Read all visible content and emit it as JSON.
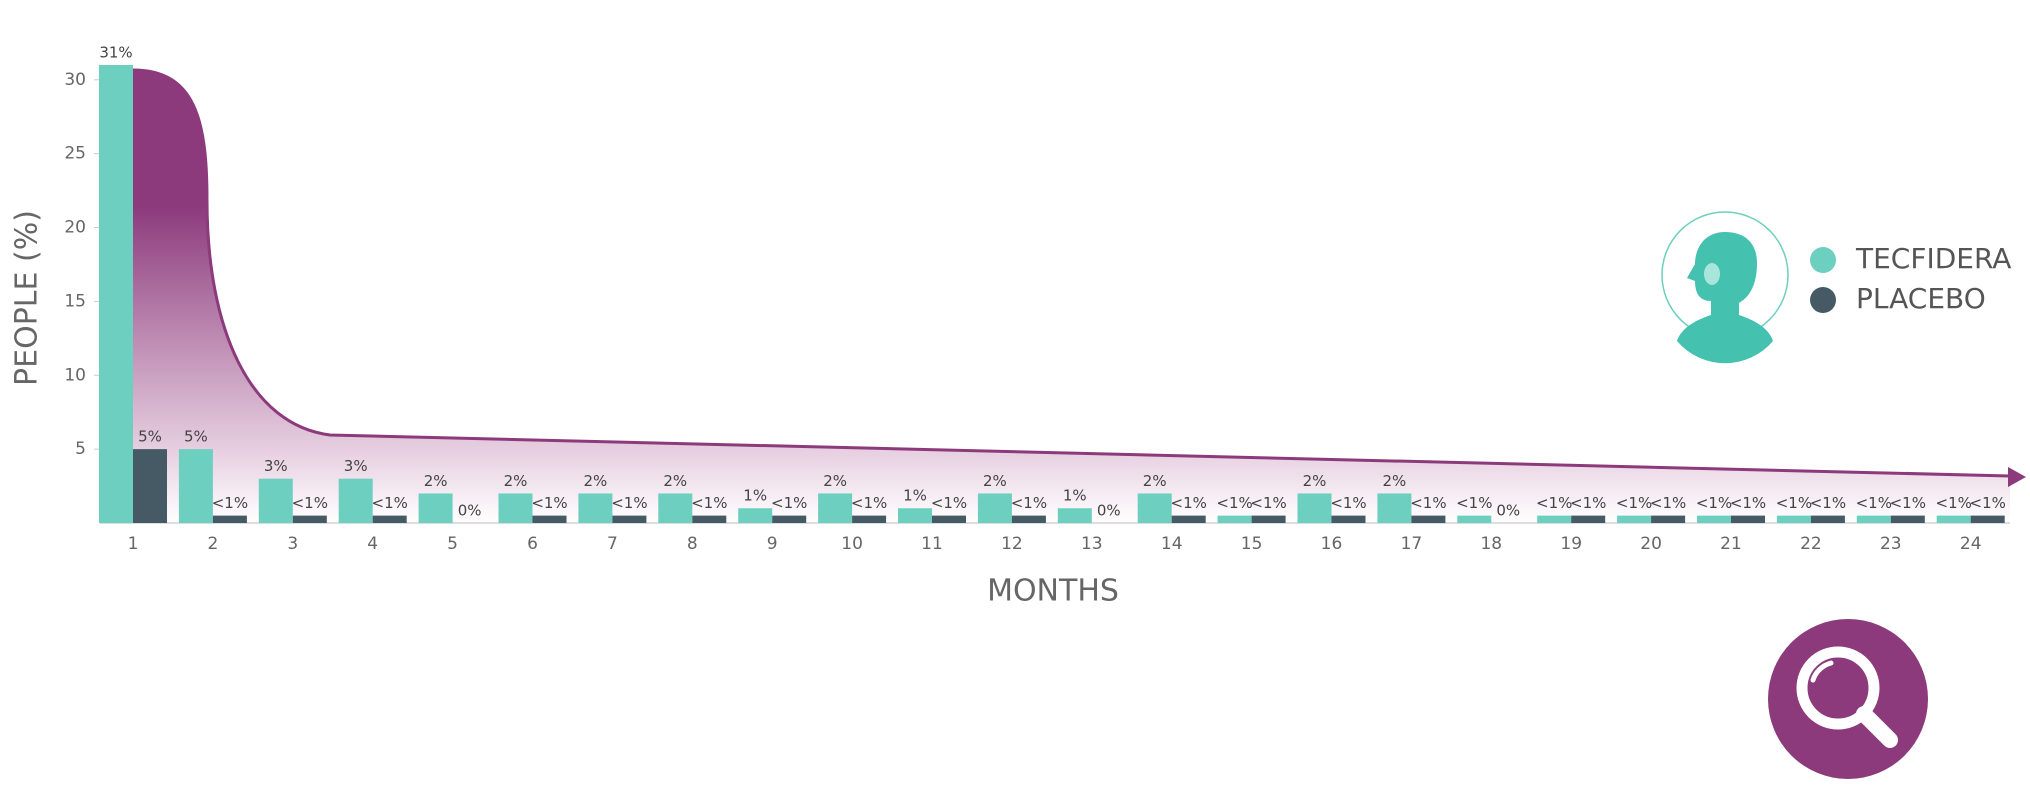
{
  "chart_data": {
    "type": "bar",
    "x_label": "MONTHS",
    "y_label": "PEOPLE (%)",
    "categories": [
      "1",
      "2",
      "3",
      "4",
      "5",
      "6",
      "7",
      "8",
      "9",
      "10",
      "11",
      "12",
      "13",
      "14",
      "15",
      "16",
      "17",
      "18",
      "19",
      "20",
      "21",
      "22",
      "23",
      "24"
    ],
    "series": [
      {
        "name": "TECFIDERA",
        "color": "#6dcfc0",
        "values": [
          31,
          5,
          3,
          3,
          2,
          2,
          2,
          2,
          1,
          2,
          1,
          2,
          1,
          2,
          0.5,
          2,
          2,
          0.5,
          0.5,
          0.5,
          0.5,
          0.5,
          0.5,
          0.5
        ],
        "value_labels": [
          "31%",
          "5%",
          "3%",
          "3%",
          "2%",
          "2%",
          "2%",
          "2%",
          "1%",
          "2%",
          "1%",
          "2%",
          "1%",
          "2%",
          "<1%",
          "2%",
          "2%",
          "<1%",
          "<1%",
          "<1%",
          "<1%",
          "<1%",
          "<1%",
          "<1%"
        ]
      },
      {
        "name": "PLACEBO",
        "color": "#455a64",
        "values": [
          5,
          0.5,
          0.5,
          0.5,
          0,
          0.5,
          0.5,
          0.5,
          0.5,
          0.5,
          0.5,
          0.5,
          0,
          0.5,
          0.5,
          0.5,
          0.5,
          0,
          0.5,
          0.5,
          0.5,
          0.5,
          0.5,
          0.5
        ],
        "value_labels": [
          "5%",
          "<1%",
          "<1%",
          "<1%",
          "0%",
          "<1%",
          "<1%",
          "<1%",
          "<1%",
          "<1%",
          "<1%",
          "<1%",
          "0%",
          "<1%",
          "<1%",
          "<1%",
          "<1%",
          "0%",
          "<1%",
          "<1%",
          "<1%",
          "<1%",
          "<1%",
          "<1%"
        ]
      }
    ],
    "ylim": [
      0,
      31
    ],
    "yticks": [
      5,
      10,
      15,
      20,
      25,
      30
    ],
    "grid": false,
    "legend": "right"
  }
}
